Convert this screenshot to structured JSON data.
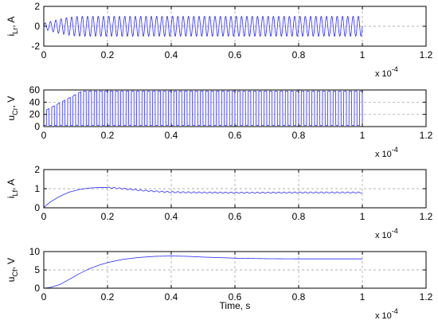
{
  "figure": {
    "xlabel": "Time, s",
    "colors": {
      "signal": "#2a2aff",
      "grid": "#9a9a9a",
      "axis": "#000000"
    }
  },
  "chart_data": [
    {
      "type": "line",
      "id": "iLr",
      "ylabel_main": "i",
      "ylabel_sub": "Lr",
      "ylabel_unit": ", A",
      "xlim": [
        0,
        1.2
      ],
      "ylim": [
        -2,
        2
      ],
      "x_ticks": [
        "0",
        "0.2",
        "0.4",
        "0.6",
        "0.8",
        "1",
        "1.2"
      ],
      "y_ticks": [
        "-2",
        "0",
        "2"
      ],
      "y_tick_values": [
        -2,
        0,
        2
      ],
      "x_exponent_base": "x 10",
      "x_exponent_power": "-4",
      "grid": "dashed",
      "signal": {
        "kind": "oscillation",
        "x_end": 1.0,
        "cycles": 60,
        "amp_initial": 0.3,
        "amp_steady": 1.0,
        "rise_end": 0.12,
        "offset": 0
      }
    },
    {
      "type": "line",
      "id": "uCr",
      "ylabel_main": "u",
      "ylabel_sub": "Cr",
      "ylabel_unit": ", V",
      "xlim": [
        0,
        1.2
      ],
      "ylim": [
        0,
        60
      ],
      "x_ticks": [
        "0",
        "0.2",
        "0.4",
        "0.6",
        "0.8",
        "1",
        "1.2"
      ],
      "y_ticks": [
        "0",
        "20",
        "40",
        "60"
      ],
      "y_tick_values": [
        0,
        20,
        40,
        60
      ],
      "x_exponent_base": "x 10",
      "x_exponent_power": "-4",
      "grid": "dashed",
      "signal": {
        "kind": "pulse",
        "x_end": 1.0,
        "cycles": 60,
        "low": 0,
        "high_initial": 25,
        "high_steady": 58,
        "rise_end": 0.12
      }
    },
    {
      "type": "line",
      "id": "iLf",
      "ylabel_main": "i",
      "ylabel_sub": "Lf",
      "ylabel_unit": ", A",
      "xlim": [
        0,
        1.2
      ],
      "ylim": [
        0,
        2
      ],
      "x_ticks": [
        "0",
        "0.2",
        "0.4",
        "0.6",
        "0.8",
        "1",
        "1.2"
      ],
      "y_ticks": [
        "0",
        "1",
        "2"
      ],
      "y_tick_values": [
        0,
        1,
        2
      ],
      "x_exponent_base": "x 10",
      "x_exponent_power": "-4",
      "grid": "dashed",
      "x": [
        0,
        0.02,
        0.05,
        0.08,
        0.11,
        0.14,
        0.17,
        0.2,
        0.25,
        0.3,
        0.35,
        0.4,
        0.5,
        0.6,
        0.7,
        0.8,
        0.9,
        1.0
      ],
      "values": [
        0.02,
        0.3,
        0.6,
        0.82,
        0.95,
        1.03,
        1.06,
        1.06,
        1.0,
        0.92,
        0.86,
        0.82,
        0.8,
        0.79,
        0.79,
        0.8,
        0.8,
        0.8
      ],
      "ripple": 0.03
    },
    {
      "type": "line",
      "id": "uCf",
      "ylabel_main": "u",
      "ylabel_sub": "Cf",
      "ylabel_unit": ", V",
      "xlim": [
        0,
        1.2
      ],
      "ylim": [
        0,
        10
      ],
      "x_ticks": [
        "0",
        "0.2",
        "0.4",
        "0.6",
        "0.8",
        "1",
        "1.2"
      ],
      "y_ticks": [
        "0",
        "5",
        "10"
      ],
      "y_tick_values": [
        0,
        5,
        10
      ],
      "x_exponent_base": "x 10",
      "x_exponent_power": "-4",
      "grid": "dashed",
      "x": [
        0,
        0.02,
        0.05,
        0.08,
        0.11,
        0.14,
        0.17,
        0.2,
        0.25,
        0.3,
        0.35,
        0.4,
        0.45,
        0.5,
        0.6,
        0.7,
        0.8,
        0.9,
        1.0
      ],
      "values": [
        0,
        0.2,
        1.0,
        2.4,
        3.9,
        5.2,
        6.2,
        7.0,
        7.9,
        8.4,
        8.7,
        8.8,
        8.7,
        8.5,
        8.2,
        8.05,
        8.0,
        8.0,
        8.0
      ],
      "ripple": 0
    }
  ]
}
